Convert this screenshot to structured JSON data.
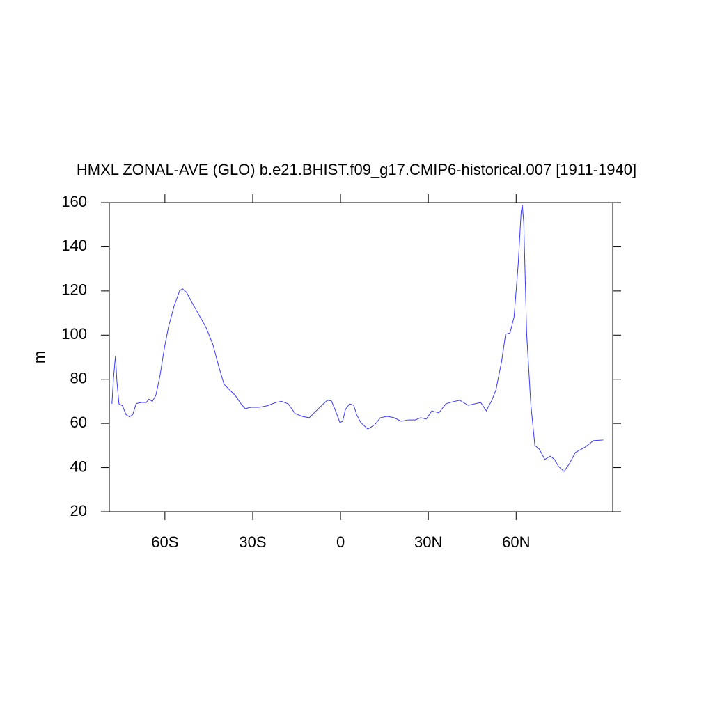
{
  "chart_data": {
    "type": "line",
    "title": "HMXL ZONAL-AVE (GLO) b.e21.BHIST.f09_g17.CMIP6-historical.007 [1911-1940]",
    "y_label": "m",
    "xlim": [
      -79,
      93
    ],
    "ylim": [
      20,
      160
    ],
    "xticks": [
      {
        "value": -60,
        "label": "60S"
      },
      {
        "value": -30,
        "label": "30S"
      },
      0,
      {
        "value": 30,
        "label": "30N"
      },
      {
        "value": 60,
        "label": "60N"
      }
    ],
    "yticks": [
      20,
      40,
      60,
      80,
      100,
      120,
      140,
      160
    ],
    "series": [
      {
        "color": "#3a3aff",
        "x": [
          -78.1,
          -77.6,
          -76.9,
          -76.4,
          -75.7,
          -74.5,
          -73.3,
          -72.1,
          -71,
          -69.8,
          -68.1,
          -66.4,
          -65.5,
          -64.3,
          -63.1,
          -61.7,
          -60.2,
          -58.8,
          -56.9,
          -55,
          -54,
          -52.6,
          -50.7,
          -48.3,
          -46,
          -43.6,
          -41.7,
          -39.8,
          -37.9,
          -36,
          -34,
          -32.6,
          -30.7,
          -27.9,
          -25,
          -22.1,
          -20.2,
          -17.9,
          -15.5,
          -13.1,
          -10.7,
          -8.3,
          -6.4,
          -4.5,
          -3.1,
          -1.7,
          -0.2,
          0.7,
          1.7,
          3.1,
          4.5,
          5.5,
          6.9,
          9.3,
          11.7,
          13.6,
          16,
          18.3,
          20.7,
          23.1,
          25.5,
          27.4,
          29.3,
          31.2,
          33.6,
          36,
          38.3,
          40.7,
          43.6,
          46,
          47.9,
          49.8,
          51.7,
          53.1,
          55,
          56.4,
          57.9,
          59.3,
          60.7,
          61.7,
          62.1,
          62.6,
          63.6,
          65,
          66.4,
          67.9,
          69.8,
          71.7,
          73.1,
          74.5,
          76.4,
          78.3,
          80.2,
          83.6,
          86.4,
          89.8
        ],
        "values": [
          68.9,
          80,
          90.6,
          79,
          68.9,
          68,
          64,
          63,
          64,
          69,
          69.5,
          69.5,
          71,
          70,
          72.7,
          81.5,
          94,
          103.6,
          113,
          120,
          121,
          119.3,
          114.6,
          109,
          103.6,
          95.7,
          86.2,
          77.7,
          75.2,
          72.7,
          68.9,
          66.7,
          67.3,
          67.3,
          68,
          69.5,
          70,
          68.9,
          64.5,
          63.2,
          62.6,
          65.7,
          68.2,
          70.5,
          70.2,
          65.7,
          60.4,
          61,
          66.4,
          68.9,
          68.2,
          64,
          60.4,
          57.5,
          59.4,
          62.6,
          63.2,
          62.6,
          61,
          61.6,
          61.6,
          62.6,
          62,
          65.7,
          64.8,
          68.9,
          69.8,
          70.5,
          68.2,
          68.9,
          69.5,
          65.7,
          70.5,
          75.2,
          87.8,
          100.4,
          101,
          108.3,
          132,
          155.6,
          159,
          150.9,
          100.4,
          68.9,
          50,
          48.4,
          43.7,
          45.2,
          43.7,
          40.5,
          38.3,
          42,
          46.8,
          49.3,
          52.2,
          52.5
        ]
      }
    ]
  }
}
